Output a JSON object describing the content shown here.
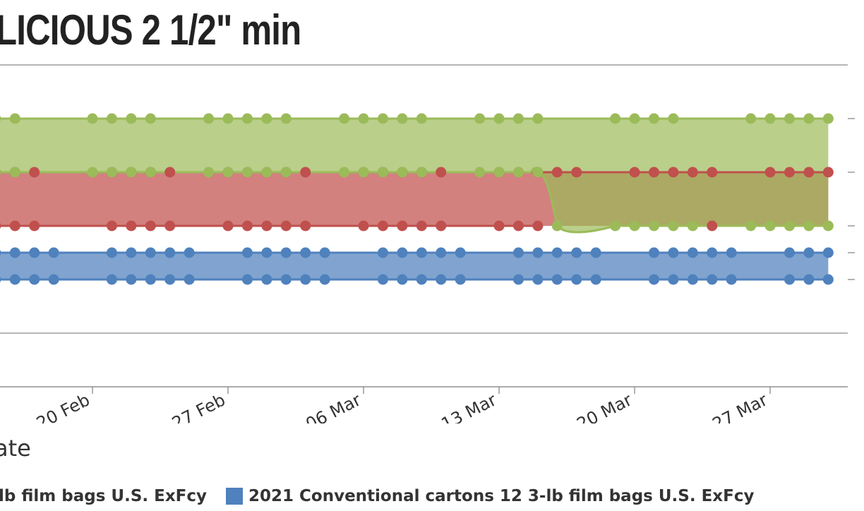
{
  "chart_data": {
    "type": "area",
    "title": "LICIOUS 2 1/2\" min",
    "xlabel": "ate",
    "x_ticks": [
      "20 Feb",
      "27 Feb",
      "06 Mar",
      "13 Mar",
      "20 Mar",
      "27 Mar"
    ],
    "grid": true,
    "legend_position": "bottom",
    "series": [
      {
        "name": "lb film bags U.S. ExFcy",
        "color": "#9bbb59",
        "low_before": 5,
        "high_before": 5.5,
        "low_after": 4,
        "high_after": 6,
        "points_upper": [
          "15 Feb",
          "16 Feb",
          "20 Feb",
          "21 Feb",
          "22 Feb",
          "23 Feb",
          "26 Feb",
          "27 Feb",
          "28 Feb",
          "01 Mar",
          "02 Mar",
          "05 Mar",
          "06 Mar",
          "07 Mar",
          "08 Mar",
          "09 Mar",
          "12 Mar",
          "13 Mar",
          "14 Mar",
          "15 Mar",
          "19 Mar",
          "20 Mar",
          "21 Mar",
          "22 Mar",
          "26 Mar",
          "27 Mar",
          "28 Mar",
          "29 Mar",
          "30 Mar"
        ],
        "points_lower": [
          "15 Feb",
          "16 Feb",
          "20 Feb",
          "21 Feb",
          "22 Feb",
          "23 Feb",
          "26 Feb",
          "27 Feb",
          "28 Feb",
          "01 Mar",
          "02 Mar",
          "05 Mar",
          "06 Mar",
          "07 Mar",
          "08 Mar",
          "09 Mar",
          "12 Mar",
          "13 Mar",
          "14 Mar",
          "15 Mar",
          "16 Mar",
          "19 Mar",
          "20 Mar",
          "21 Mar",
          "22 Mar",
          "23 Mar",
          "26 Mar",
          "27 Mar",
          "28 Mar",
          "29 Mar",
          "30 Mar"
        ]
      },
      {
        "name": "",
        "color": "#c0504d",
        "low": 4,
        "high": 5,
        "points_upper": [
          "15 Feb",
          "16 Feb",
          "17 Feb",
          "21 Feb",
          "22 Feb",
          "23 Feb",
          "24 Feb",
          "27 Feb",
          "28 Feb",
          "01 Mar",
          "02 Mar",
          "03 Mar",
          "06 Mar",
          "07 Mar",
          "08 Mar",
          "09 Mar",
          "10 Mar",
          "13 Mar",
          "14 Mar",
          "15 Mar",
          "16 Mar",
          "17 Mar",
          "20 Mar",
          "21 Mar",
          "22 Mar",
          "23 Mar",
          "24 Mar",
          "27 Mar",
          "28 Mar",
          "29 Mar",
          "30 Mar"
        ],
        "points_lower": [
          "15 Feb",
          "16 Feb",
          "17 Feb",
          "21 Feb",
          "22 Feb",
          "23 Feb",
          "24 Feb",
          "27 Feb",
          "28 Feb",
          "01 Mar",
          "02 Mar",
          "03 Mar",
          "06 Mar",
          "07 Mar",
          "08 Mar",
          "09 Mar",
          "10 Mar",
          "13 Mar",
          "14 Mar",
          "15 Mar",
          "24 Mar"
        ]
      },
      {
        "name": "2021 Conventional cartons 12 3-lb film bags U.S. ExFcy",
        "color": "#4f81bd",
        "low": 3,
        "high": 3.5,
        "points_upper": [
          "15 Feb",
          "16 Feb",
          "17 Feb",
          "18 Feb",
          "21 Feb",
          "22 Feb",
          "23 Feb",
          "24 Feb",
          "25 Feb",
          "28 Feb",
          "01 Mar",
          "02 Mar",
          "03 Mar",
          "04 Mar",
          "07 Mar",
          "08 Mar",
          "09 Mar",
          "10 Mar",
          "11 Mar",
          "14 Mar",
          "15 Mar",
          "16 Mar",
          "17 Mar",
          "18 Mar",
          "21 Mar",
          "22 Mar",
          "23 Mar",
          "24 Mar",
          "25 Mar",
          "28 Mar",
          "29 Mar",
          "30 Mar"
        ],
        "points_lower": [
          "15 Feb",
          "16 Feb",
          "17 Feb",
          "18 Feb",
          "21 Feb",
          "22 Feb",
          "23 Feb",
          "24 Feb",
          "25 Feb",
          "28 Feb",
          "01 Mar",
          "02 Mar",
          "03 Mar",
          "04 Mar",
          "07 Mar",
          "08 Mar",
          "09 Mar",
          "10 Mar",
          "11 Mar",
          "14 Mar",
          "15 Mar",
          "16 Mar",
          "17 Mar",
          "18 Mar",
          "21 Mar",
          "22 Mar",
          "23 Mar",
          "24 Mar",
          "25 Mar",
          "28 Mar",
          "29 Mar",
          "30 Mar"
        ]
      }
    ],
    "legend": [
      {
        "label": "lb film bags U.S. ExFcy",
        "color": "#9bbb59",
        "swatch": false
      },
      {
        "label": "2021 Conventional cartons 12 3-lb film bags U.S. ExFcy",
        "color": "#4f81bd",
        "swatch": true
      }
    ]
  }
}
